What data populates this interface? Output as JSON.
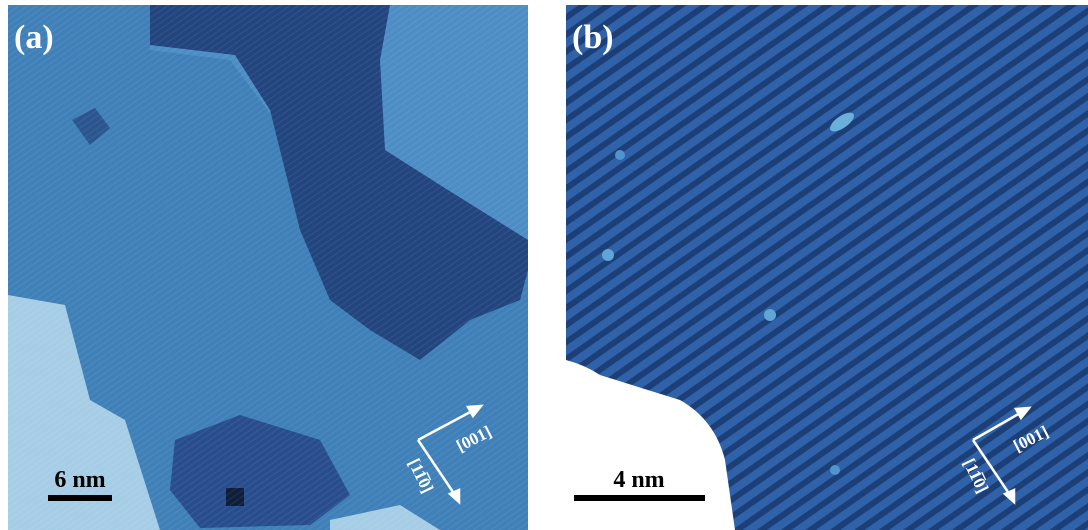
{
  "panels": [
    {
      "label": "(a)",
      "scale_bar": "6 nm",
      "directions": [
        "[001]",
        "[11̅0]"
      ]
    },
    {
      "label": "(b)",
      "scale_bar": "4 nm",
      "directions": [
        "[001]",
        "[11̅0]"
      ]
    }
  ]
}
